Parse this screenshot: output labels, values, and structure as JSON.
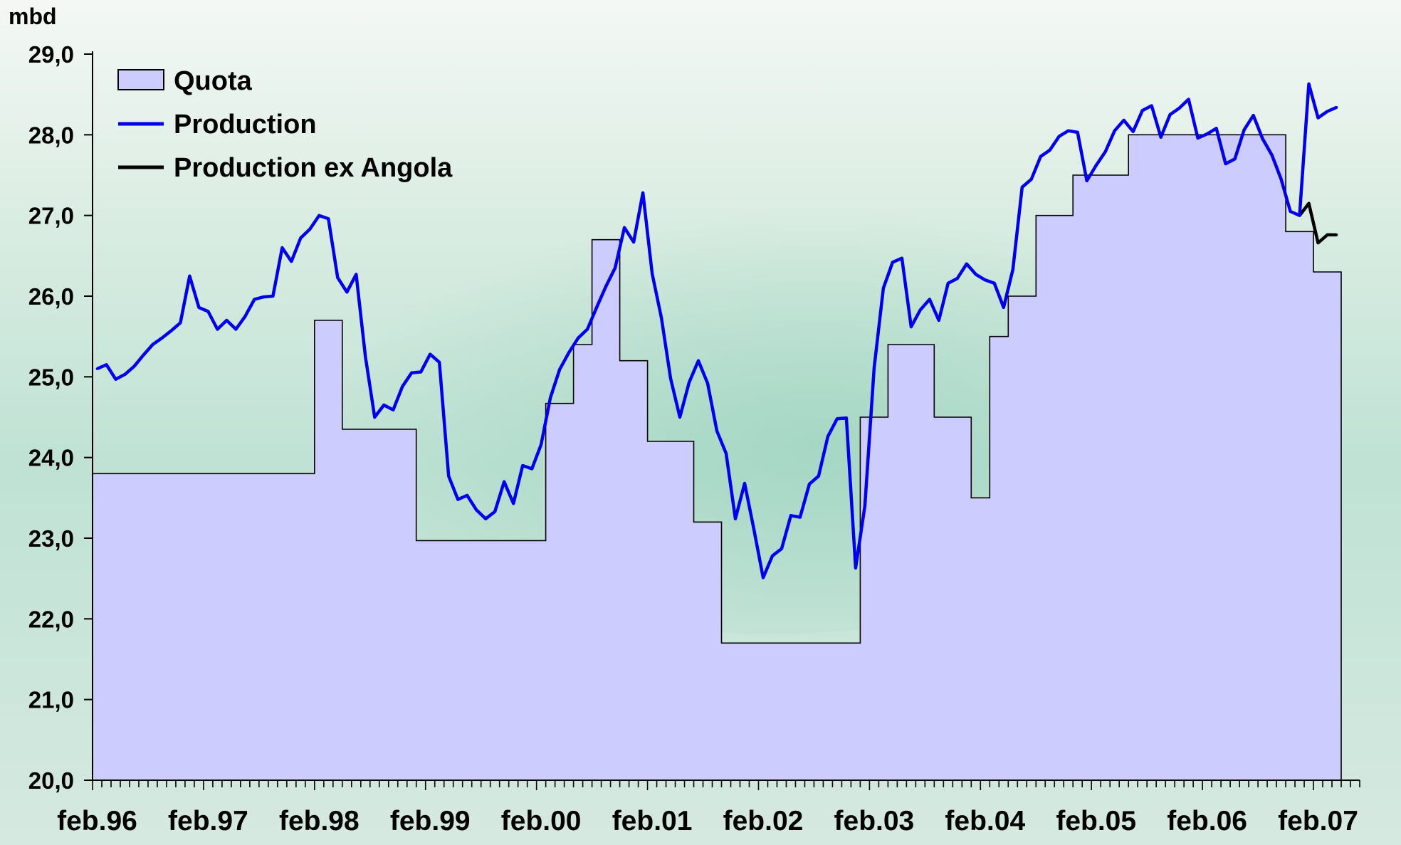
{
  "chart_data": {
    "type": "area",
    "ylabel": "mbd",
    "ylim": [
      20,
      29
    ],
    "yticks": [
      "20,0",
      "21,0",
      "22,0",
      "23,0",
      "24,0",
      "25,0",
      "26,0",
      "27,0",
      "28,0",
      "29,0"
    ],
    "x_labels": [
      "feb.96",
      "feb.97",
      "feb.98",
      "feb.99",
      "feb.00",
      "feb.01",
      "feb.02",
      "feb.03",
      "feb.04",
      "feb.05",
      "feb.06",
      "feb.07"
    ],
    "x_range_months": 137,
    "grid": false,
    "legend_placement": "top-left",
    "legend": [
      {
        "label": "Quota",
        "kind": "area"
      },
      {
        "label": "Production",
        "kind": "line"
      },
      {
        "label": "Production ex Angola",
        "kind": "line"
      }
    ],
    "colors": {
      "quota_fill": "#ccccff",
      "quota_edge": "#000000",
      "production": "#0000ee",
      "production_ex_angola": "#000000",
      "background_top": "#eef5f0",
      "background_mid": "#bfe3d3"
    },
    "series": [
      {
        "name": "Quota",
        "type": "step-area",
        "steps": [
          {
            "from": "feb.96",
            "to": "jan.98",
            "value": 23.8
          },
          {
            "from": "feb.98",
            "to": "apr.98",
            "value": 25.7
          },
          {
            "from": "may.98",
            "to": "dec.98",
            "value": 24.35
          },
          {
            "from": "jan.99",
            "to": "feb.00",
            "value": 22.97
          },
          {
            "from": "mar.00",
            "to": "may.00",
            "value": 24.67
          },
          {
            "from": "jun.00",
            "to": "jul.00",
            "value": 25.4
          },
          {
            "from": "aug.00",
            "to": "oct.00",
            "value": 26.7
          },
          {
            "from": "nov.00",
            "to": "jan.01",
            "value": 25.2
          },
          {
            "from": "feb.01",
            "to": "jun.01",
            "value": 24.2
          },
          {
            "from": "jul.01",
            "to": "sep.01",
            "value": 23.2
          },
          {
            "from": "oct.01",
            "to": "dec.02",
            "value": 21.7
          },
          {
            "from": "jan.03",
            "to": "mar.03",
            "value": 24.5
          },
          {
            "from": "apr.03",
            "to": "aug.03",
            "value": 25.4
          },
          {
            "from": "sep.03",
            "to": "dec.03",
            "value": 24.5
          },
          {
            "from": "jan.04",
            "to": "feb.04",
            "value": 23.5
          },
          {
            "from": "mar.04",
            "to": "apr.04",
            "value": 25.5
          },
          {
            "from": "may.04",
            "to": "jul.04",
            "value": 26.0
          },
          {
            "from": "aug.04",
            "to": "nov.04",
            "value": 27.0
          },
          {
            "from": "dec.04",
            "to": "may.05",
            "value": 27.5
          },
          {
            "from": "jun.05",
            "to": "oct.06",
            "value": 28.0
          },
          {
            "from": "nov.06",
            "to": "jan.07",
            "value": 26.8
          },
          {
            "from": "feb.07",
            "to": "apr.07",
            "value": 26.3
          }
        ]
      },
      {
        "name": "Production",
        "type": "line",
        "x": [
          "feb.96",
          "mar.96",
          "apr.96",
          "may.96",
          "jun.96",
          "jul.96",
          "aug.96",
          "sep.96",
          "oct.96",
          "nov.96",
          "dec.96",
          "jan.97",
          "feb.97",
          "mar.97",
          "apr.97",
          "may.97",
          "jun.97",
          "jul.97",
          "aug.97",
          "sep.97",
          "oct.97",
          "nov.97",
          "dec.97",
          "jan.98",
          "feb.98",
          "mar.98",
          "apr.98",
          "may.98",
          "jun.98",
          "jul.98",
          "aug.98",
          "sep.98",
          "oct.98",
          "nov.98",
          "dec.98",
          "jan.99",
          "feb.99",
          "mar.99",
          "apr.99",
          "may.99",
          "jun.99",
          "jul.99",
          "aug.99",
          "sep.99",
          "oct.99",
          "nov.99",
          "dec.99",
          "jan.00",
          "feb.00",
          "mar.00",
          "apr.00",
          "may.00",
          "jun.00",
          "jul.00",
          "aug.00",
          "sep.00",
          "oct.00",
          "nov.00",
          "dec.00",
          "jan.01",
          "feb.01",
          "mar.01",
          "apr.01",
          "may.01",
          "jun.01",
          "jul.01",
          "aug.01",
          "sep.01",
          "oct.01",
          "nov.01",
          "dec.01",
          "jan.02",
          "feb.02",
          "mar.02",
          "apr.02",
          "may.02",
          "jun.02",
          "jul.02",
          "aug.02",
          "sep.02",
          "oct.02",
          "nov.02",
          "dec.02",
          "jan.03",
          "feb.03",
          "mar.03",
          "apr.03",
          "may.03",
          "jun.03",
          "jul.03",
          "aug.03",
          "sep.03",
          "oct.03",
          "nov.03",
          "dec.03",
          "jan.04",
          "feb.04",
          "mar.04",
          "apr.04",
          "may.04",
          "jun.04",
          "jul.04",
          "aug.04",
          "sep.04",
          "oct.04",
          "nov.04",
          "dec.04",
          "jan.05",
          "feb.05",
          "mar.05",
          "apr.05",
          "may.05",
          "jun.05",
          "jul.05",
          "aug.05",
          "sep.05",
          "oct.05",
          "nov.05",
          "dec.05",
          "jan.06",
          "feb.06",
          "mar.06",
          "apr.06",
          "may.06",
          "jun.06",
          "jul.06",
          "aug.06",
          "sep.06",
          "oct.06",
          "nov.06",
          "dec.06",
          "jan.07",
          "feb.07",
          "mar.07",
          "apr.07"
        ],
        "values": [
          25.1,
          25.15,
          24.97,
          25.03,
          25.13,
          25.27,
          25.4,
          25.48,
          25.57,
          25.67,
          26.25,
          25.86,
          25.81,
          25.59,
          25.7,
          25.59,
          25.75,
          25.96,
          25.99,
          26.0,
          26.6,
          26.43,
          26.72,
          26.83,
          27.0,
          26.96,
          26.23,
          26.05,
          26.27,
          25.25,
          24.5,
          24.65,
          24.59,
          24.88,
          25.05,
          25.06,
          25.28,
          25.18,
          23.77,
          23.48,
          23.53,
          23.35,
          23.24,
          23.33,
          23.7,
          23.43,
          23.9,
          23.86,
          24.16,
          24.74,
          25.09,
          25.3,
          25.48,
          25.59,
          25.86,
          26.12,
          26.35,
          26.85,
          26.67,
          27.28,
          26.28,
          25.73,
          24.98,
          24.5,
          24.93,
          25.2,
          24.92,
          24.33,
          24.05,
          23.24,
          23.68,
          23.11,
          22.51,
          22.78,
          22.87,
          23.28,
          23.26,
          23.67,
          23.77,
          24.26,
          24.48,
          24.49,
          22.63,
          23.4,
          25.11,
          26.1,
          26.42,
          26.47,
          25.62,
          25.83,
          25.96,
          25.7,
          26.16,
          26.22,
          26.4,
          26.27,
          26.2,
          26.16,
          25.86,
          26.33,
          27.35,
          27.45,
          27.73,
          27.81,
          27.98,
          28.05,
          28.03,
          27.43,
          27.62,
          27.79,
          28.05,
          28.18,
          28.04,
          28.3,
          28.36,
          27.97,
          28.25,
          28.33,
          28.44,
          27.96,
          28.01,
          28.08,
          27.64,
          27.7,
          28.06,
          28.24,
          27.95,
          27.75,
          27.45,
          27.05,
          27.0,
          28.63,
          28.21,
          28.29,
          28.34
        ]
      },
      {
        "name": "Production ex Angola",
        "type": "line",
        "x": [
          "dec.06",
          "jan.07",
          "feb.07",
          "mar.07",
          "apr.07"
        ],
        "values": [
          27.0,
          27.15,
          26.66,
          26.76,
          26.76
        ]
      }
    ]
  }
}
